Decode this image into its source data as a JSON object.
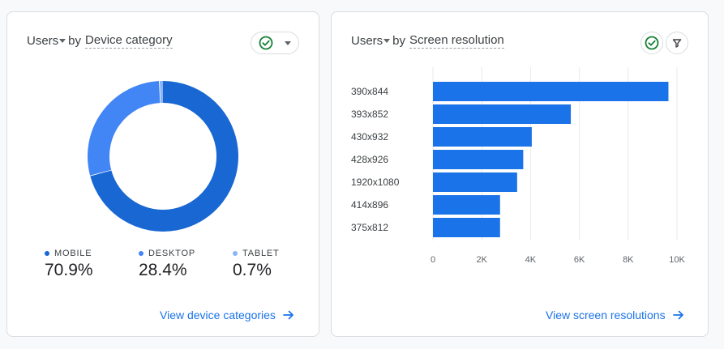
{
  "device_card": {
    "title_metric": "Users",
    "title_by": "by",
    "title_dimension": "Device category",
    "legend": [
      {
        "label": "MOBILE",
        "value": "70.9%",
        "color": "#1967d2"
      },
      {
        "label": "DESKTOP",
        "value": "28.4%",
        "color": "#4285f4"
      },
      {
        "label": "TABLET",
        "value": "0.7%",
        "color": "#8ab4f8"
      }
    ],
    "link_label": "View device categories"
  },
  "screen_card": {
    "title_metric": "Users",
    "title_by": "by",
    "title_dimension": "Screen resolution",
    "link_label": "View screen resolutions"
  },
  "colors": {
    "accent": "#1a73e8",
    "bar": "#1a73e8",
    "check_green": "#188038"
  },
  "icons": [
    "check-circle-icon",
    "chevron-down-icon",
    "filter-icon",
    "arrow-right-icon"
  ],
  "chart_data": [
    {
      "type": "pie",
      "variant": "donut",
      "title": "",
      "categories": [
        "MOBILE",
        "DESKTOP",
        "TABLET"
      ],
      "values": [
        70.9,
        28.4,
        0.7
      ],
      "colors": [
        "#1967d2",
        "#4285f4",
        "#8ab4f8"
      ]
    },
    {
      "type": "bar",
      "orientation": "horizontal",
      "title": "",
      "categories": [
        "390x844",
        "393x852",
        "430x932",
        "428x926",
        "1920x1080",
        "414x896",
        "375x812"
      ],
      "values": [
        9650,
        5650,
        4050,
        3700,
        3450,
        2750,
        2750
      ],
      "xlim": [
        0,
        10000
      ],
      "xticks": [
        0,
        2000,
        4000,
        6000,
        8000,
        10000
      ],
      "xtick_labels": [
        "0",
        "2K",
        "4K",
        "6K",
        "8K",
        "10K"
      ],
      "grid": true
    }
  ]
}
